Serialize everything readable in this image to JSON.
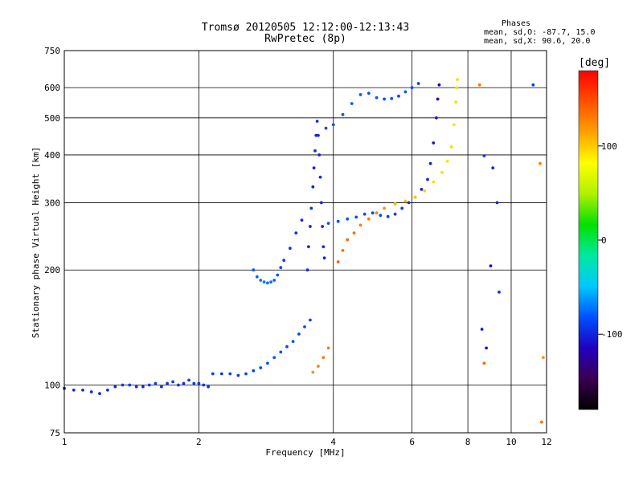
{
  "chart_data": {
    "type": "scatter",
    "title": "Tromsø 20120505 12:12:00-12:13:43",
    "subtitle": "RwPretec (8p)",
    "xlabel": "Frequency [MHz]",
    "ylabel": "Stationary phase Virtual Height [km]",
    "x_scale": "log",
    "y_scale": "log",
    "xlim": [
      1,
      12
    ],
    "ylim": [
      75,
      750
    ],
    "grid": true,
    "x_ticks": [
      1,
      2,
      4,
      6,
      8,
      10,
      12
    ],
    "x_tick_labels": [
      "1",
      "2",
      "4",
      "6",
      "8",
      "10",
      "12"
    ],
    "y_ticks": [
      75,
      100,
      200,
      300,
      400,
      500,
      600,
      750
    ],
    "y_tick_labels": [
      "75",
      "100",
      "200",
      "300",
      "400",
      "500",
      "600",
      "750"
    ],
    "phases_box": {
      "header": "Phases",
      "line_o": "mean, sd,O: -87.7, 15.0",
      "line_x": "mean, sd,X:  90.6, 20.0"
    },
    "colorbar": {
      "label": "[deg]",
      "range": [
        -180,
        180
      ],
      "ticks": [
        100,
        0,
        -100
      ],
      "tick_labels": [
        "100",
        "0",
        "-100"
      ],
      "colors": [
        "#000000",
        "#3a0050",
        "#2000c0",
        "#0050ff",
        "#00c8ff",
        "#00e8a0",
        "#00e000",
        "#b0f000",
        "#ffff00",
        "#ffa000",
        "#ff5000",
        "#ff0000"
      ]
    },
    "series": [
      {
        "points": [
          [
            1.0,
            98,
            -98
          ],
          [
            1.05,
            97,
            -97
          ],
          [
            1.1,
            97,
            -95
          ],
          [
            1.15,
            96,
            -96
          ],
          [
            1.2,
            95,
            -100
          ],
          [
            1.25,
            97,
            -94
          ],
          [
            1.3,
            99,
            -92
          ],
          [
            1.35,
            100,
            -90
          ],
          [
            1.4,
            100,
            -93
          ],
          [
            1.45,
            99,
            -94
          ],
          [
            1.5,
            99,
            -96
          ],
          [
            1.55,
            100,
            -88
          ],
          [
            1.6,
            101,
            -90
          ],
          [
            1.65,
            99,
            -95
          ],
          [
            1.7,
            101,
            -92
          ],
          [
            1.75,
            102,
            -89
          ],
          [
            1.8,
            100,
            -92
          ],
          [
            1.85,
            101,
            -94
          ],
          [
            1.9,
            103,
            -88
          ],
          [
            1.95,
            101,
            -90
          ],
          [
            2.0,
            101,
            -92
          ],
          [
            2.05,
            100,
            -95
          ],
          [
            2.1,
            99,
            -96
          ]
        ]
      },
      {
        "points": [
          [
            2.15,
            107,
            -90
          ],
          [
            2.25,
            107,
            -92
          ],
          [
            2.35,
            107,
            -88
          ],
          [
            2.45,
            106,
            -90
          ],
          [
            2.55,
            107,
            -85
          ],
          [
            2.65,
            109,
            -86
          ],
          [
            2.75,
            111,
            -84
          ],
          [
            2.85,
            114,
            -82
          ],
          [
            2.95,
            118,
            -80
          ],
          [
            3.05,
            122,
            -82
          ],
          [
            3.15,
            126,
            -84
          ],
          [
            3.25,
            130,
            -80
          ],
          [
            3.35,
            136,
            -84
          ],
          [
            3.45,
            142,
            -82
          ],
          [
            3.55,
            148,
            -85
          ]
        ]
      },
      {
        "points": [
          [
            2.65,
            200,
            -80
          ],
          [
            2.7,
            192,
            -75
          ],
          [
            2.75,
            188,
            -72
          ],
          [
            2.8,
            186,
            -70
          ],
          [
            2.85,
            185,
            -74
          ],
          [
            2.9,
            186,
            -72
          ],
          [
            2.95,
            188,
            -76
          ],
          [
            3.0,
            194,
            -80
          ],
          [
            3.05,
            203,
            -85
          ],
          [
            3.1,
            212,
            -88
          ],
          [
            3.2,
            228,
            -92
          ],
          [
            3.3,
            250,
            -95
          ],
          [
            3.4,
            270,
            -95
          ]
        ]
      },
      {
        "points": [
          [
            3.5,
            200,
            -95
          ],
          [
            3.52,
            230,
            -98
          ],
          [
            3.55,
            260,
            -100
          ],
          [
            3.57,
            290,
            -95
          ],
          [
            3.6,
            330,
            -98
          ],
          [
            3.62,
            370,
            -100
          ],
          [
            3.64,
            410,
            -96
          ],
          [
            3.66,
            450,
            -100
          ],
          [
            3.68,
            490,
            -95
          ],
          [
            3.7,
            450,
            -98
          ],
          [
            3.72,
            400,
            -100
          ],
          [
            3.74,
            350,
            -95
          ],
          [
            3.76,
            300,
            -98
          ],
          [
            3.78,
            260,
            -100
          ],
          [
            3.8,
            230,
            -96
          ],
          [
            3.82,
            215,
            -100
          ]
        ]
      },
      {
        "points": [
          [
            3.85,
            470,
            -85
          ],
          [
            4.0,
            480,
            -82
          ],
          [
            4.2,
            510,
            -80
          ],
          [
            4.4,
            545,
            -78
          ],
          [
            4.6,
            575,
            -80
          ],
          [
            4.8,
            580,
            -82
          ],
          [
            5.0,
            565,
            -80
          ],
          [
            5.2,
            560,
            -82
          ],
          [
            5.4,
            562,
            -80
          ],
          [
            5.6,
            570,
            -84
          ],
          [
            5.8,
            585,
            -82
          ],
          [
            6.0,
            600,
            -84
          ],
          [
            6.2,
            615,
            -88
          ]
        ]
      },
      {
        "points": [
          [
            3.9,
            265,
            -80
          ],
          [
            4.1,
            268,
            -82
          ],
          [
            4.3,
            272,
            -80
          ],
          [
            4.5,
            275,
            -84
          ],
          [
            4.7,
            280,
            -82
          ],
          [
            4.9,
            282,
            -84
          ],
          [
            5.1,
            278,
            -86
          ],
          [
            5.3,
            276,
            -88
          ],
          [
            5.5,
            280,
            -90
          ],
          [
            5.7,
            290,
            -92
          ],
          [
            5.9,
            300,
            -95
          ],
          [
            6.1,
            310,
            -95
          ],
          [
            6.3,
            325,
            -98
          ],
          [
            6.5,
            345,
            -100
          ],
          [
            6.6,
            380,
            -102
          ],
          [
            6.7,
            430,
            -105
          ],
          [
            6.8,
            500,
            -105
          ],
          [
            6.85,
            560,
            -108
          ],
          [
            6.9,
            610,
            -110
          ]
        ]
      },
      {
        "points": [
          [
            4.1,
            210,
            140
          ],
          [
            4.2,
            225,
            135
          ],
          [
            4.3,
            240,
            140
          ],
          [
            4.45,
            250,
            135
          ],
          [
            4.6,
            262,
            130
          ],
          [
            4.8,
            272,
            130
          ],
          [
            5.0,
            282,
            125
          ],
          [
            5.2,
            290,
            120
          ],
          [
            5.5,
            298,
            110
          ],
          [
            5.8,
            303,
            105
          ],
          [
            6.1,
            310,
            100
          ],
          [
            6.4,
            322,
            98
          ],
          [
            6.7,
            340,
            95
          ],
          [
            7.0,
            360,
            95
          ],
          [
            7.2,
            385,
            92
          ],
          [
            7.35,
            420,
            95
          ],
          [
            7.45,
            480,
            92
          ],
          [
            7.52,
            550,
            95
          ],
          [
            7.56,
            600,
            92
          ],
          [
            7.58,
            630,
            95
          ]
        ]
      },
      {
        "points": [
          [
            3.6,
            108,
            120
          ],
          [
            3.7,
            112,
            125
          ],
          [
            3.8,
            118,
            130
          ],
          [
            3.9,
            125,
            128
          ]
        ]
      },
      {
        "points": [
          [
            8.5,
            610,
            130
          ],
          [
            8.7,
            398,
            -95
          ],
          [
            9.1,
            370,
            -98
          ],
          [
            9.3,
            300,
            -100
          ],
          [
            9.0,
            205,
            -110
          ],
          [
            9.4,
            175,
            -95
          ],
          [
            8.6,
            140,
            -100
          ],
          [
            8.8,
            125,
            -105
          ],
          [
            8.7,
            114,
            140
          ],
          [
            11.2,
            610,
            -88
          ],
          [
            11.6,
            380,
            130
          ],
          [
            11.8,
            118,
            120
          ],
          [
            11.7,
            80,
            130
          ]
        ]
      }
    ]
  }
}
